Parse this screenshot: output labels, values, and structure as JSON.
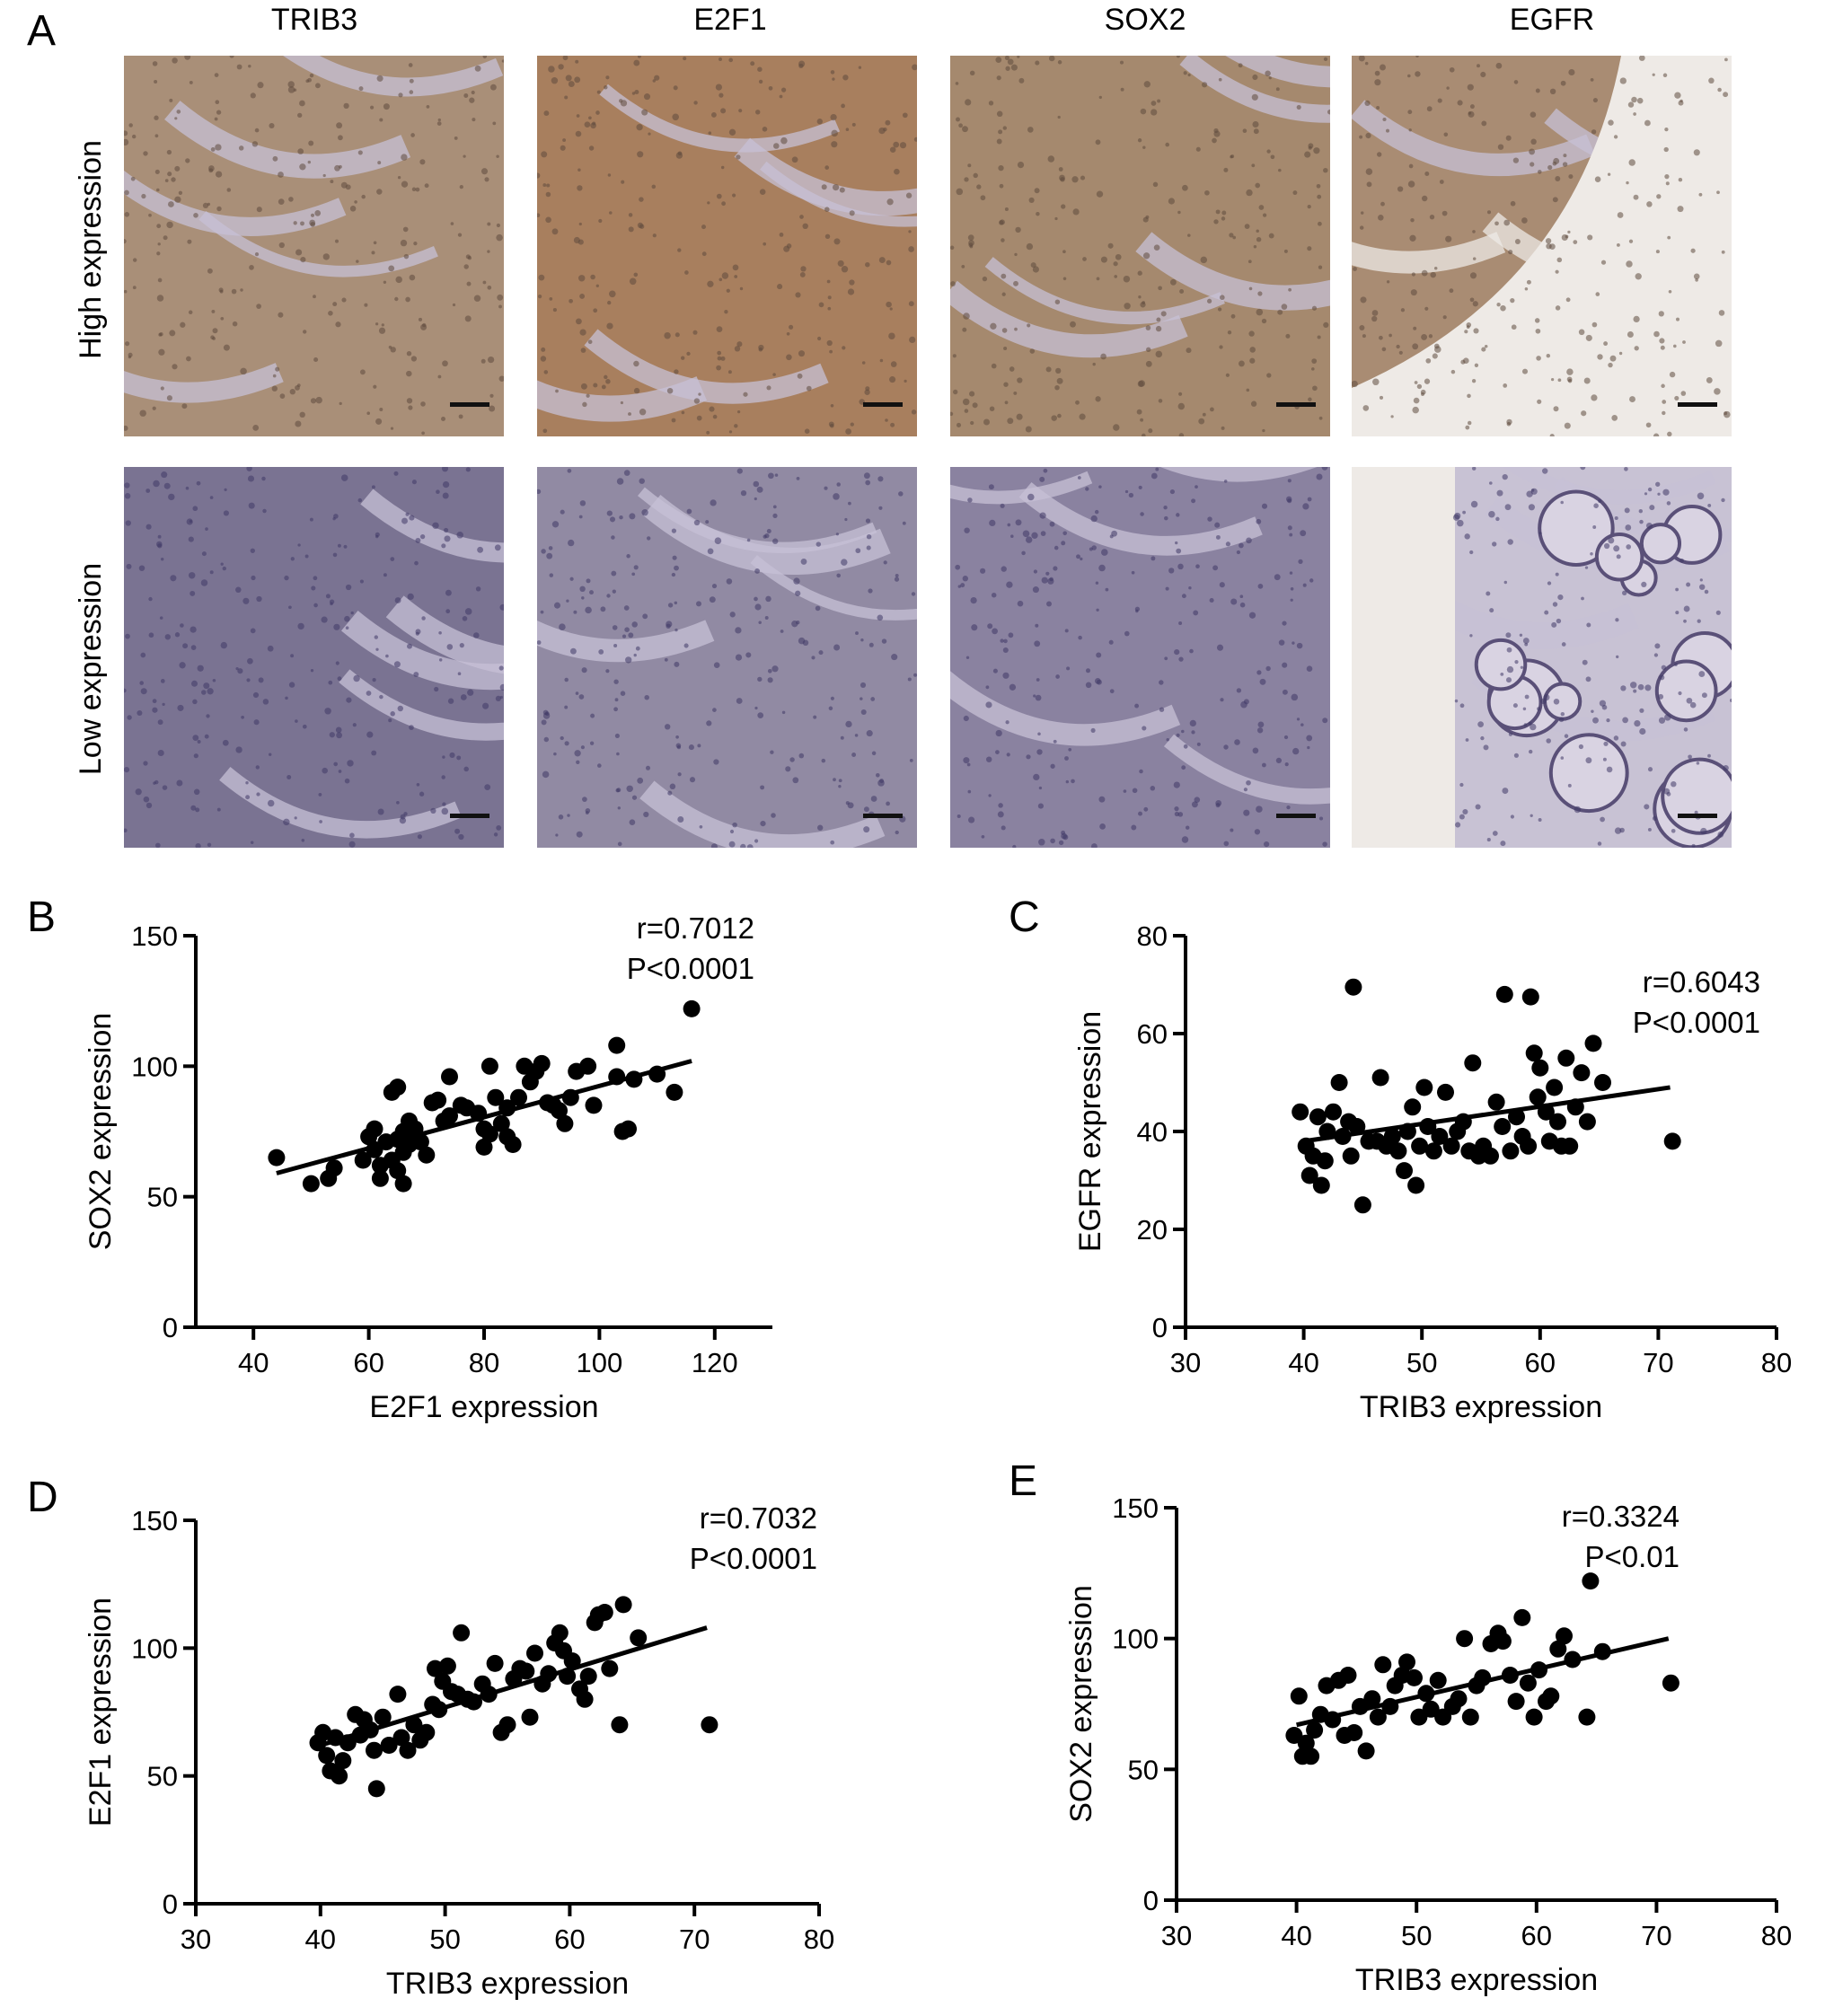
{
  "panel_a": {
    "letter": "A",
    "columns": [
      "TRIB3",
      "E2F1",
      "SOX2",
      "EGFR"
    ],
    "rows": [
      "High expression",
      "Low expression"
    ],
    "tile_colors": {
      "high": [
        "#a98f78",
        "#a87f5e",
        "#a5896e",
        "#a98c73"
      ],
      "low": [
        "#7a7392",
        "#918aa3",
        "#8a82a0",
        "#c8c2d4"
      ],
      "stroma": "#c7c0d6",
      "background": "#eeeae6",
      "scale_bar": "#111111"
    }
  },
  "chart_data": [
    {
      "id": "B",
      "type": "scatter",
      "letter": "B",
      "xlabel": "E2F1 expression",
      "ylabel": "SOX2 expression",
      "xlim": [
        30,
        130
      ],
      "ylim": [
        0,
        150
      ],
      "xticks": [
        40,
        60,
        80,
        100,
        120
      ],
      "yticks": [
        0,
        50,
        100,
        150
      ],
      "annotation": [
        "r=0.7012",
        "P<0.0001"
      ],
      "fit": [
        [
          44,
          59
        ],
        [
          116,
          102
        ]
      ],
      "points": [
        [
          44,
          65
        ],
        [
          50,
          55
        ],
        [
          53,
          57
        ],
        [
          54,
          61
        ],
        [
          59,
          64
        ],
        [
          60,
          73
        ],
        [
          61,
          76
        ],
        [
          61,
          68
        ],
        [
          62,
          62
        ],
        [
          62,
          57
        ],
        [
          63,
          71
        ],
        [
          64,
          64
        ],
        [
          64,
          90
        ],
        [
          65,
          92
        ],
        [
          65,
          72
        ],
        [
          65,
          60
        ],
        [
          66,
          67
        ],
        [
          66,
          75
        ],
        [
          66,
          55
        ],
        [
          67,
          70
        ],
        [
          67,
          79
        ],
        [
          68,
          76
        ],
        [
          69,
          71
        ],
        [
          70,
          66
        ],
        [
          71,
          86
        ],
        [
          72,
          87
        ],
        [
          73,
          79
        ],
        [
          74,
          96
        ],
        [
          74,
          81
        ],
        [
          76,
          85
        ],
        [
          77,
          84
        ],
        [
          79,
          82
        ],
        [
          80,
          69
        ],
        [
          80,
          76
        ],
        [
          81,
          74
        ],
        [
          81,
          100
        ],
        [
          82,
          88
        ],
        [
          83,
          78
        ],
        [
          84,
          84
        ],
        [
          84,
          73
        ],
        [
          85,
          70
        ],
        [
          86,
          88
        ],
        [
          87,
          100
        ],
        [
          88,
          94
        ],
        [
          89,
          98
        ],
        [
          90,
          101
        ],
        [
          91,
          86
        ],
        [
          92,
          85
        ],
        [
          93,
          83
        ],
        [
          94,
          78
        ],
        [
          95,
          88
        ],
        [
          96,
          98
        ],
        [
          98,
          100
        ],
        [
          99,
          85
        ],
        [
          103,
          108
        ],
        [
          103,
          96
        ],
        [
          104,
          75
        ],
        [
          105,
          76
        ],
        [
          106,
          95
        ],
        [
          110,
          97
        ],
        [
          113,
          90
        ],
        [
          116,
          122
        ]
      ]
    },
    {
      "id": "C",
      "type": "scatter",
      "letter": "C",
      "xlabel": "TRIB3 expression",
      "ylabel": "EGFR expression",
      "xlim": [
        30,
        80
      ],
      "ylim": [
        0,
        80
      ],
      "xticks": [
        30,
        40,
        50,
        60,
        70,
        80
      ],
      "yticks": [
        0,
        20,
        40,
        60,
        80
      ],
      "annotation": [
        "r=0.6043",
        "P<0.0001"
      ],
      "fit": [
        [
          40,
          38
        ],
        [
          71,
          49
        ]
      ],
      "points": [
        [
          39.7,
          44
        ],
        [
          40.2,
          37
        ],
        [
          40.5,
          31
        ],
        [
          40.8,
          35
        ],
        [
          41.2,
          43
        ],
        [
          41.5,
          29
        ],
        [
          41.8,
          34
        ],
        [
          42.0,
          40
        ],
        [
          42.5,
          44
        ],
        [
          43.0,
          50
        ],
        [
          43.3,
          39
        ],
        [
          43.8,
          42
        ],
        [
          44.0,
          35
        ],
        [
          44.2,
          69.5
        ],
        [
          44.5,
          41
        ],
        [
          45.0,
          25
        ],
        [
          45.5,
          38
        ],
        [
          46.2,
          38
        ],
        [
          46.5,
          51
        ],
        [
          47.0,
          37
        ],
        [
          47.5,
          39
        ],
        [
          48.0,
          36
        ],
        [
          48.5,
          32
        ],
        [
          48.8,
          40
        ],
        [
          49.2,
          45
        ],
        [
          49.5,
          29
        ],
        [
          49.8,
          37
        ],
        [
          50.2,
          49
        ],
        [
          50.5,
          41
        ],
        [
          51.0,
          36
        ],
        [
          51.5,
          39
        ],
        [
          52.0,
          48
        ],
        [
          52.5,
          37
        ],
        [
          53.0,
          40
        ],
        [
          53.5,
          42
        ],
        [
          54.0,
          36
        ],
        [
          54.3,
          54
        ],
        [
          54.8,
          35
        ],
        [
          55.2,
          37
        ],
        [
          55.8,
          35
        ],
        [
          56.3,
          46
        ],
        [
          56.8,
          41
        ],
        [
          57.0,
          68
        ],
        [
          57.5,
          36
        ],
        [
          58.0,
          43
        ],
        [
          58.5,
          39
        ],
        [
          59.0,
          37
        ],
        [
          59.2,
          67.5
        ],
        [
          59.5,
          56
        ],
        [
          59.8,
          47
        ],
        [
          60.0,
          53
        ],
        [
          60.5,
          44
        ],
        [
          60.8,
          38
        ],
        [
          61.2,
          49
        ],
        [
          61.5,
          42
        ],
        [
          61.8,
          37
        ],
        [
          62.2,
          55
        ],
        [
          62.5,
          37
        ],
        [
          63.0,
          45
        ],
        [
          63.5,
          52
        ],
        [
          64.0,
          42
        ],
        [
          64.5,
          58
        ],
        [
          65.3,
          50
        ],
        [
          71.2,
          38
        ]
      ]
    },
    {
      "id": "D",
      "type": "scatter",
      "letter": "D",
      "xlabel": "TRIB3 expression",
      "ylabel": "E2F1 expression",
      "xlim": [
        30,
        80
      ],
      "ylim": [
        0,
        150
      ],
      "xticks": [
        30,
        40,
        50,
        60,
        70,
        80
      ],
      "yticks": [
        0,
        50,
        100,
        150
      ],
      "annotation": [
        "r=0.7032",
        "P<0.0001"
      ],
      "fit": [
        [
          40,
          62
        ],
        [
          71,
          108
        ]
      ],
      "points": [
        [
          39.8,
          63
        ],
        [
          40.2,
          67
        ],
        [
          40.5,
          58
        ],
        [
          40.8,
          52
        ],
        [
          41.2,
          65
        ],
        [
          41.5,
          50
        ],
        [
          41.8,
          56
        ],
        [
          42.2,
          63
        ],
        [
          42.8,
          74
        ],
        [
          43.2,
          66
        ],
        [
          43.5,
          72
        ],
        [
          44.0,
          68
        ],
        [
          44.3,
          60
        ],
        [
          44.5,
          45
        ],
        [
          45.0,
          73
        ],
        [
          45.5,
          62
        ],
        [
          46.2,
          82
        ],
        [
          46.5,
          65
        ],
        [
          47.0,
          60
        ],
        [
          47.5,
          70
        ],
        [
          48.0,
          64
        ],
        [
          48.5,
          67
        ],
        [
          49.0,
          78
        ],
        [
          49.2,
          92
        ],
        [
          49.5,
          76
        ],
        [
          49.8,
          87
        ],
        [
          50.2,
          93
        ],
        [
          50.5,
          83
        ],
        [
          51.0,
          82
        ],
        [
          51.3,
          106
        ],
        [
          51.8,
          80
        ],
        [
          52.3,
          79
        ],
        [
          53.0,
          86
        ],
        [
          53.5,
          82
        ],
        [
          54.0,
          94
        ],
        [
          54.5,
          67
        ],
        [
          55.0,
          70
        ],
        [
          55.5,
          88
        ],
        [
          56.0,
          92
        ],
        [
          56.5,
          91
        ],
        [
          56.8,
          73
        ],
        [
          57.2,
          98
        ],
        [
          57.8,
          86
        ],
        [
          58.3,
          90
        ],
        [
          58.8,
          102
        ],
        [
          59.2,
          106
        ],
        [
          59.5,
          99
        ],
        [
          59.8,
          89
        ],
        [
          60.2,
          95
        ],
        [
          60.8,
          84
        ],
        [
          61.2,
          80
        ],
        [
          61.5,
          89
        ],
        [
          62.0,
          110
        ],
        [
          62.3,
          113
        ],
        [
          62.8,
          114
        ],
        [
          63.2,
          92
        ],
        [
          64.0,
          70
        ],
        [
          64.3,
          117
        ],
        [
          65.5,
          104
        ],
        [
          71.2,
          70
        ]
      ]
    },
    {
      "id": "E",
      "type": "scatter",
      "letter": "E",
      "xlabel": "TRIB3 expression",
      "ylabel": "SOX2 expression",
      "xlim": [
        30,
        80
      ],
      "ylim": [
        0,
        150
      ],
      "xticks": [
        30,
        40,
        50,
        60,
        70,
        80
      ],
      "yticks": [
        0,
        50,
        100,
        150
      ],
      "annotation": [
        "r=0.3324",
        "P<0.01"
      ],
      "fit": [
        [
          40,
          67
        ],
        [
          71,
          100
        ]
      ],
      "points": [
        [
          39.8,
          63
        ],
        [
          40.2,
          78
        ],
        [
          40.5,
          55
        ],
        [
          40.8,
          60
        ],
        [
          41.2,
          55
        ],
        [
          41.5,
          65
        ],
        [
          42.0,
          71
        ],
        [
          42.5,
          82
        ],
        [
          43.0,
          69
        ],
        [
          43.5,
          84
        ],
        [
          44.0,
          63
        ],
        [
          44.3,
          86
        ],
        [
          44.8,
          64
        ],
        [
          45.3,
          74
        ],
        [
          45.8,
          57
        ],
        [
          46.3,
          77
        ],
        [
          46.8,
          70
        ],
        [
          47.2,
          90
        ],
        [
          47.8,
          74
        ],
        [
          48.2,
          82
        ],
        [
          48.8,
          86
        ],
        [
          49.2,
          91
        ],
        [
          49.8,
          85
        ],
        [
          50.2,
          70
        ],
        [
          50.8,
          79
        ],
        [
          51.2,
          73
        ],
        [
          51.8,
          84
        ],
        [
          52.2,
          70
        ],
        [
          53.0,
          74
        ],
        [
          53.5,
          77
        ],
        [
          54.0,
          100
        ],
        [
          54.5,
          70
        ],
        [
          55.0,
          82
        ],
        [
          55.5,
          85
        ],
        [
          56.2,
          98
        ],
        [
          56.8,
          102
        ],
        [
          57.2,
          99
        ],
        [
          57.8,
          86
        ],
        [
          58.3,
          76
        ],
        [
          58.8,
          108
        ],
        [
          59.3,
          83
        ],
        [
          59.8,
          70
        ],
        [
          60.2,
          88
        ],
        [
          60.8,
          76
        ],
        [
          61.2,
          78
        ],
        [
          61.8,
          96
        ],
        [
          62.3,
          101
        ],
        [
          63.0,
          92
        ],
        [
          64.2,
          70
        ],
        [
          64.5,
          122
        ],
        [
          65.5,
          95
        ],
        [
          71.2,
          83
        ]
      ]
    }
  ]
}
